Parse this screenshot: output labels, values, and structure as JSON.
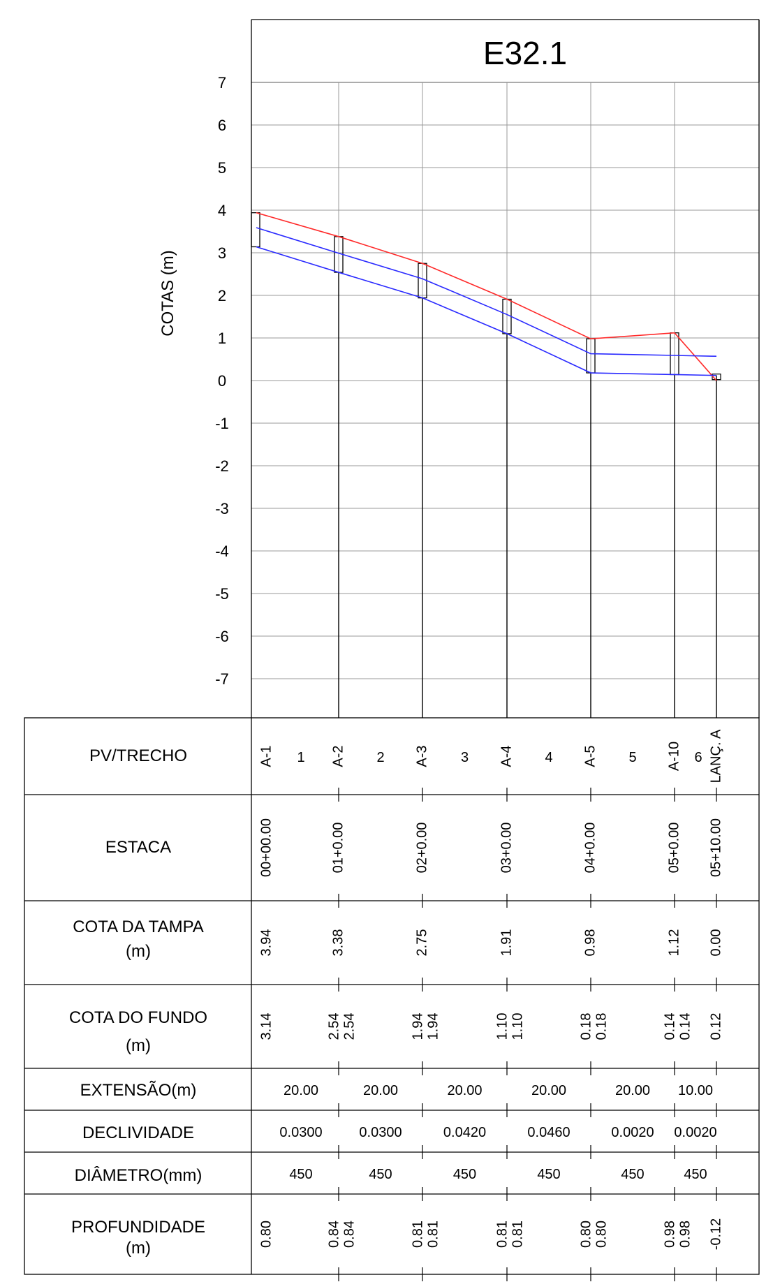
{
  "title": "E32.1",
  "ylabel": "COTAS (m)",
  "y_ticks": [
    "7",
    "6",
    "5",
    "4",
    "3",
    "2",
    "1",
    "0",
    "-1",
    "-2",
    "-3",
    "-4",
    "-5",
    "-6",
    "-7"
  ],
  "row_labels": {
    "pv": "PV/TRECHO",
    "estaca": "ESTACA",
    "tampa_1": "COTA DA TAMPA",
    "tampa_2": "(m)",
    "fundo_1": "COTA DO FUNDO",
    "fundo_2": "(m)",
    "extensao": "EXTENSÃO(m)",
    "declividade": "DECLIVIDADE",
    "diametro": "DIÂMETRO(mm)",
    "prof_1": "PROFUNDIDADE",
    "prof_2": "(m)"
  },
  "chart_data": {
    "type": "line",
    "title": "E32.1",
    "ylabel": "COTAS (m)",
    "ylim": [
      -7,
      7
    ],
    "grid": true,
    "stations": [
      {
        "pv": "A-1",
        "estaca": "00+00.00",
        "tampa": "3.94",
        "fundo": [
          "3.14"
        ],
        "prof": [
          "0.80"
        ]
      },
      {
        "pv": "A-2",
        "estaca": "01+0.00",
        "tampa": "3.38",
        "fundo": [
          "2.54",
          "2.54"
        ],
        "prof": [
          "0.84",
          "0.84"
        ]
      },
      {
        "pv": "A-3",
        "estaca": "02+0.00",
        "tampa": "2.75",
        "fundo": [
          "1.94",
          "1.94"
        ],
        "prof": [
          "0.81",
          "0.81"
        ]
      },
      {
        "pv": "A-4",
        "estaca": "03+0.00",
        "tampa": "1.91",
        "fundo": [
          "1.10",
          "1.10"
        ],
        "prof": [
          "0.81",
          "0.81"
        ]
      },
      {
        "pv": "A-5",
        "estaca": "04+0.00",
        "tampa": "0.98",
        "fundo": [
          "0.18",
          "0.18"
        ],
        "prof": [
          "0.80",
          "0.80"
        ]
      },
      {
        "pv": "A-10",
        "estaca": "05+0.00",
        "tampa": "1.12",
        "fundo": [
          "0.14",
          "0.14"
        ],
        "prof": [
          "0.98",
          "0.98"
        ]
      },
      {
        "pv": "LANÇ. A",
        "estaca": "05+10.00",
        "tampa": "0.00",
        "fundo": [
          "0.12"
        ],
        "prof": [
          "-0.12"
        ]
      }
    ],
    "segments": [
      {
        "trecho": "1",
        "extensao": "20.00",
        "declividade": "0.0300",
        "diametro": "450"
      },
      {
        "trecho": "2",
        "extensao": "20.00",
        "declividade": "0.0300",
        "diametro": "450"
      },
      {
        "trecho": "3",
        "extensao": "20.00",
        "declividade": "0.0420",
        "diametro": "450"
      },
      {
        "trecho": "4",
        "extensao": "20.00",
        "declividade": "0.0460",
        "diametro": "450"
      },
      {
        "trecho": "5",
        "extensao": "20.00",
        "declividade": "0.0020",
        "diametro": "450"
      },
      {
        "trecho": "6",
        "extensao": "10.00",
        "declividade": "0.0020",
        "diametro": "450"
      }
    ],
    "series": [
      {
        "values": [
          3.94,
          3.38,
          2.75,
          1.91,
          0.98,
          1.12,
          0.0
        ],
        "color": "#ff2a2a"
      },
      {
        "values": [
          3.14,
          2.54,
          1.94,
          1.1,
          0.18,
          0.14,
          0.12
        ],
        "color": "#2a2aff"
      }
    ],
    "pipe_diameter_m": 0.45
  }
}
